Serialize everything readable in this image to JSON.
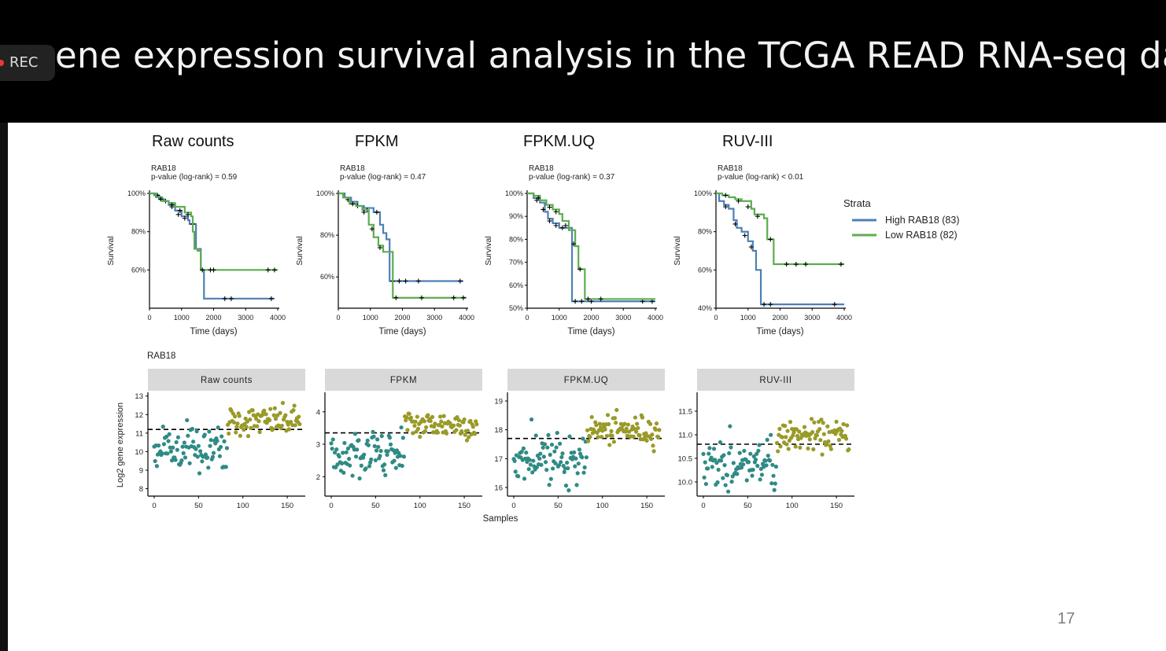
{
  "slide": {
    "title": "ene expression survival analysis in the TCGA READ RNA-seq data",
    "rec_label": "REC",
    "page_number": "17"
  },
  "colors": {
    "high": "#4f7fb5",
    "low": "#5cad4f",
    "teal": "#2f8b84",
    "olive": "#999a28",
    "strip": "#d9d9d9"
  },
  "chart_data": [
    {
      "type": "line",
      "panel": "survival",
      "title": "Raw counts",
      "gene_label": "RAB18",
      "pvalue_text": "p-value (log-rank) = 0.59",
      "xlabel": "Time (days)",
      "ylabel": "Survival",
      "xlim": [
        0,
        4000
      ],
      "xticks": [
        0,
        1000,
        2000,
        3000,
        4000
      ],
      "ylim": [
        40,
        100
      ],
      "yticks": [
        60,
        80,
        100
      ],
      "ytick_labels": [
        "60%",
        "80%",
        "100%"
      ],
      "series": [
        {
          "name": "High RAB18 (83)",
          "color": "high",
          "steps": [
            [
              0,
              100
            ],
            [
              150,
              99
            ],
            [
              300,
              97
            ],
            [
              450,
              96
            ],
            [
              600,
              94
            ],
            [
              800,
              91
            ],
            [
              1000,
              88
            ],
            [
              1200,
              86
            ],
            [
              1250,
              84
            ],
            [
              1450,
              79
            ],
            [
              1450,
              71
            ],
            [
              1600,
              60
            ],
            [
              1700,
              60
            ],
            [
              1700,
              45
            ],
            [
              3900,
              45
            ]
          ],
          "censor": [
            [
              250,
              99
            ],
            [
              500,
              96
            ],
            [
              700,
              93
            ],
            [
              900,
              89
            ],
            [
              1100,
              87
            ],
            [
              1350,
              84
            ],
            [
              2350,
              45
            ],
            [
              2550,
              45
            ],
            [
              3800,
              45
            ]
          ]
        },
        {
          "name": "Low RAB18 (82)",
          "color": "low",
          "steps": [
            [
              0,
              100
            ],
            [
              200,
              98
            ],
            [
              400,
              96
            ],
            [
              600,
              95
            ],
            [
              800,
              93
            ],
            [
              1100,
              90
            ],
            [
              1300,
              88
            ],
            [
              1350,
              80
            ],
            [
              1400,
              71
            ],
            [
              1500,
              70
            ],
            [
              1600,
              70
            ],
            [
              1600,
              60
            ],
            [
              4000,
              60
            ]
          ],
          "censor": [
            [
              350,
              97
            ],
            [
              700,
              94
            ],
            [
              950,
              91
            ],
            [
              1200,
              89
            ],
            [
              1650,
              60
            ],
            [
              1900,
              60
            ],
            [
              2000,
              60
            ],
            [
              3700,
              60
            ],
            [
              3900,
              60
            ]
          ]
        }
      ]
    },
    {
      "type": "line",
      "panel": "survival",
      "title": "FPKM",
      "gene_label": "RAB18",
      "pvalue_text": "p-value (log-rank) = 0.47",
      "xlabel": "Time (days)",
      "ylabel": "Survival",
      "xlim": [
        0,
        4000
      ],
      "xticks": [
        0,
        1000,
        2000,
        3000,
        4000
      ],
      "ylim": [
        45,
        100
      ],
      "yticks": [
        60,
        80,
        100
      ],
      "ytick_labels": [
        "60%",
        "80%",
        "100%"
      ],
      "series": [
        {
          "name": "High RAB18 (83)",
          "color": "high",
          "steps": [
            [
              0,
              100
            ],
            [
              200,
              98
            ],
            [
              400,
              96
            ],
            [
              600,
              94
            ],
            [
              800,
              93
            ],
            [
              1100,
              91
            ],
            [
              1300,
              91
            ],
            [
              1300,
              85
            ],
            [
              1400,
              81
            ],
            [
              1500,
              78
            ],
            [
              1600,
              73
            ],
            [
              1600,
              58
            ],
            [
              3900,
              58
            ]
          ],
          "censor": [
            [
              300,
              97
            ],
            [
              600,
              94
            ],
            [
              900,
              92
            ],
            [
              1200,
              91
            ],
            [
              1700,
              58
            ],
            [
              1900,
              58
            ],
            [
              2100,
              58
            ],
            [
              2500,
              58
            ],
            [
              3800,
              58
            ]
          ]
        },
        {
          "name": "Low RAB18 (82)",
          "color": "low",
          "steps": [
            [
              0,
              100
            ],
            [
              150,
              98
            ],
            [
              350,
              95
            ],
            [
              550,
              94
            ],
            [
              750,
              92
            ],
            [
              950,
              85
            ],
            [
              1100,
              79
            ],
            [
              1250,
              75
            ],
            [
              1400,
              72
            ],
            [
              1600,
              72
            ],
            [
              1700,
              58
            ],
            [
              1700,
              50
            ],
            [
              4000,
              50
            ]
          ],
          "censor": [
            [
              450,
              95
            ],
            [
              800,
              91
            ],
            [
              1050,
              83
            ],
            [
              1300,
              74
            ],
            [
              1800,
              50
            ],
            [
              2600,
              50
            ],
            [
              3600,
              50
            ],
            [
              3900,
              50
            ]
          ]
        }
      ]
    },
    {
      "type": "line",
      "panel": "survival",
      "title": "FPKM.UQ",
      "gene_label": "RAB18",
      "pvalue_text": "p-value (log-rank) = 0.37",
      "xlabel": "Time (days)",
      "ylabel": "Survival",
      "xlim": [
        0,
        4000
      ],
      "xticks": [
        0,
        1000,
        2000,
        3000,
        4000
      ],
      "ylim": [
        50,
        100
      ],
      "yticks": [
        50,
        60,
        70,
        80,
        90,
        100
      ],
      "ytick_labels": [
        "50%",
        "60%",
        "70%",
        "80%",
        "90%",
        "100%"
      ],
      "series": [
        {
          "name": "High RAB18 (83)",
          "color": "high",
          "steps": [
            [
              0,
              100
            ],
            [
              200,
              98
            ],
            [
              400,
              96
            ],
            [
              550,
              92
            ],
            [
              650,
              89
            ],
            [
              800,
              87
            ],
            [
              1000,
              85
            ],
            [
              1200,
              85
            ],
            [
              1400,
              77
            ],
            [
              1400,
              53
            ],
            [
              4000,
              53
            ]
          ],
          "censor": [
            [
              300,
              97
            ],
            [
              500,
              93
            ],
            [
              700,
              88
            ],
            [
              900,
              86
            ],
            [
              1100,
              85
            ],
            [
              1500,
              53
            ],
            [
              1700,
              53
            ],
            [
              2000,
              53
            ],
            [
              3600,
              53
            ],
            [
              3900,
              53
            ]
          ]
        },
        {
          "name": "Low RAB18 (82)",
          "color": "low",
          "steps": [
            [
              0,
              100
            ],
            [
              200,
              99
            ],
            [
              400,
              97
            ],
            [
              600,
              95
            ],
            [
              800,
              93
            ],
            [
              1000,
              91
            ],
            [
              1100,
              88
            ],
            [
              1300,
              84
            ],
            [
              1500,
              77
            ],
            [
              1600,
              67
            ],
            [
              1800,
              67
            ],
            [
              1800,
              54
            ],
            [
              4000,
              54
            ]
          ],
          "censor": [
            [
              350,
              98
            ],
            [
              700,
              94
            ],
            [
              900,
              92
            ],
            [
              1200,
              86
            ],
            [
              1450,
              78
            ],
            [
              1650,
              67
            ],
            [
              1900,
              54
            ],
            [
              2300,
              54
            ]
          ]
        }
      ]
    },
    {
      "type": "line",
      "panel": "survival",
      "title": "RUV-III",
      "gene_label": "RAB18",
      "pvalue_text": "p-value (log-rank) < 0.01",
      "xlabel": "Time (days)",
      "ylabel": "Survival",
      "xlim": [
        0,
        4000
      ],
      "xticks": [
        0,
        1000,
        2000,
        3000,
        4000
      ],
      "ylim": [
        40,
        100
      ],
      "yticks": [
        40,
        60,
        80,
        100
      ],
      "ytick_labels": [
        "40%",
        "60%",
        "80%",
        "100%"
      ],
      "series": [
        {
          "name": "High RAB18 (83)",
          "color": "high",
          "steps": [
            [
              0,
              100
            ],
            [
              100,
              96
            ],
            [
              250,
              94
            ],
            [
              400,
              92
            ],
            [
              550,
              86
            ],
            [
              650,
              82
            ],
            [
              800,
              80
            ],
            [
              1000,
              75
            ],
            [
              1150,
              70
            ],
            [
              1250,
              60
            ],
            [
              1400,
              45
            ],
            [
              1400,
              42
            ],
            [
              4000,
              42
            ]
          ],
          "censor": [
            [
              300,
              93
            ],
            [
              600,
              84
            ],
            [
              900,
              78
            ],
            [
              1100,
              72
            ],
            [
              1500,
              42
            ],
            [
              1700,
              42
            ],
            [
              3700,
              42
            ]
          ]
        },
        {
          "name": "Low RAB18 (82)",
          "color": "low",
          "steps": [
            [
              0,
              100
            ],
            [
              200,
              99
            ],
            [
              400,
              98
            ],
            [
              600,
              97
            ],
            [
              800,
              96
            ],
            [
              1100,
              92
            ],
            [
              1200,
              89
            ],
            [
              1500,
              87
            ],
            [
              1600,
              87
            ],
            [
              1600,
              76
            ],
            [
              1800,
              76
            ],
            [
              1800,
              63
            ],
            [
              4000,
              63
            ]
          ],
          "censor": [
            [
              300,
              99
            ],
            [
              700,
              96
            ],
            [
              1000,
              93
            ],
            [
              1300,
              88
            ],
            [
              1700,
              76
            ],
            [
              2200,
              63
            ],
            [
              2500,
              63
            ],
            [
              2800,
              63
            ],
            [
              3900,
              63
            ]
          ]
        }
      ]
    },
    {
      "type": "scatter",
      "panel": "expression",
      "gene_label": "RAB18",
      "strip_label": "Raw counts",
      "xlim": [
        0,
        165
      ],
      "xticks": [
        0,
        50,
        100,
        150
      ],
      "ylim": [
        7.6,
        13.2
      ],
      "yticks": [
        8,
        9,
        10,
        11,
        12,
        13
      ],
      "ylabel": "Log2 gene expression",
      "cutoff": 11.2,
      "split_index": 83
    },
    {
      "type": "scatter",
      "panel": "expression",
      "strip_label": "FPKM",
      "xlim": [
        0,
        165
      ],
      "xticks": [
        0,
        50,
        100,
        150
      ],
      "ylim": [
        1.4,
        4.6
      ],
      "yticks": [
        2,
        3,
        4
      ],
      "cutoff": 3.35,
      "split_index": 83
    },
    {
      "type": "scatter",
      "panel": "expression",
      "strip_label": "FPKM.UQ",
      "xlim": [
        0,
        165
      ],
      "xticks": [
        0,
        50,
        100,
        150
      ],
      "ylim": [
        15.7,
        19.3
      ],
      "yticks": [
        16,
        17,
        18,
        19
      ],
      "cutoff": 17.7,
      "split_index": 83
    },
    {
      "type": "scatter",
      "panel": "expression",
      "strip_label": "RUV-III",
      "xlim": [
        0,
        165
      ],
      "xticks": [
        0,
        50,
        100,
        150
      ],
      "ylim": [
        9.7,
        11.9
      ],
      "ytick_labels": [
        "10.0",
        "10.5",
        "11.0",
        "11.5"
      ],
      "yticks": [
        10.0,
        10.5,
        11.0,
        11.5
      ],
      "cutoff": 10.8,
      "split_index": 83
    }
  ],
  "legend": {
    "title": "Strata",
    "items": [
      {
        "label": "High RAB18 (83)",
        "color": "high"
      },
      {
        "label": "Low RAB18 (82)",
        "color": "low"
      }
    ]
  },
  "shared_xlabel": "Samples"
}
